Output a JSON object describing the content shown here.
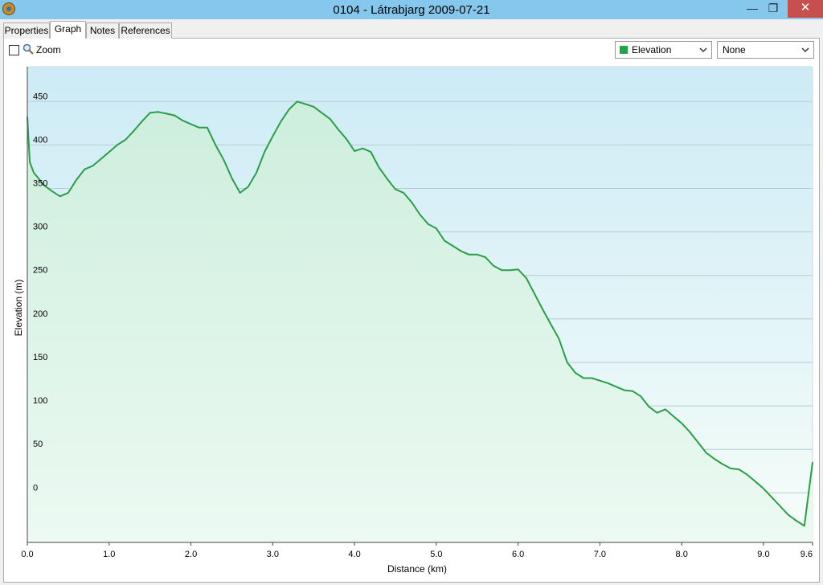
{
  "window": {
    "title": "0104 - Látrabjarg 2009-07-21",
    "controls": {
      "minimize": "—",
      "restore": "❐",
      "close": "✕"
    }
  },
  "tabs": [
    {
      "label": "Properties",
      "active": false
    },
    {
      "label": "Graph",
      "active": true
    },
    {
      "label": "Notes",
      "active": false
    },
    {
      "label": "References",
      "active": false
    }
  ],
  "toolbar": {
    "zoom_label": "Zoom",
    "zoom_checked": false,
    "primary_series_select": {
      "selected": "Elevation",
      "color": "#21a34a"
    },
    "secondary_series_select": {
      "selected": "None"
    }
  },
  "chart_data": {
    "type": "area",
    "xlabel": "Distance  (km)",
    "ylabel": "Elevation (m)",
    "xlim": [
      0,
      9.6
    ],
    "ylim": [
      -57,
      490
    ],
    "x_ticks": [
      "0.0",
      "1.0",
      "2.0",
      "3.0",
      "4.0",
      "5.0",
      "6.0",
      "7.0",
      "8.0",
      "9.0",
      "9.6"
    ],
    "y_ticks": [
      "0",
      "50",
      "100",
      "150",
      "200",
      "250",
      "300",
      "350",
      "400",
      "450"
    ],
    "grid": true,
    "series": [
      {
        "color": "#2a9e48",
        "x": [
          0.0,
          0.03,
          0.08,
          0.15,
          0.2,
          0.3,
          0.4,
          0.5,
          0.6,
          0.7,
          0.8,
          0.9,
          1.0,
          1.1,
          1.2,
          1.3,
          1.4,
          1.5,
          1.6,
          1.7,
          1.8,
          1.9,
          2.0,
          2.1,
          2.2,
          2.3,
          2.4,
          2.5,
          2.6,
          2.7,
          2.8,
          2.9,
          3.0,
          3.1,
          3.2,
          3.3,
          3.4,
          3.5,
          3.6,
          3.7,
          3.8,
          3.9,
          4.0,
          4.1,
          4.2,
          4.3,
          4.4,
          4.5,
          4.6,
          4.7,
          4.8,
          4.9,
          5.0,
          5.1,
          5.2,
          5.3,
          5.4,
          5.5,
          5.6,
          5.7,
          5.8,
          5.9,
          6.0,
          6.1,
          6.2,
          6.3,
          6.4,
          6.5,
          6.6,
          6.7,
          6.8,
          6.9,
          7.0,
          7.1,
          7.2,
          7.3,
          7.4,
          7.5,
          7.6,
          7.7,
          7.8,
          7.9,
          8.0,
          8.1,
          8.2,
          8.3,
          8.4,
          8.5,
          8.6,
          8.7,
          8.8,
          8.9,
          9.0,
          9.1,
          9.2,
          9.3,
          9.4,
          9.5,
          9.6
        ],
        "values": [
          432,
          380,
          368,
          360,
          354,
          347,
          341,
          345,
          360,
          372,
          376,
          384,
          392,
          400,
          406,
          416,
          427,
          437,
          438,
          436,
          434,
          428,
          424,
          420,
          420,
          400,
          383,
          362,
          345,
          352,
          368,
          392,
          410,
          427,
          441,
          450,
          447,
          444,
          437,
          430,
          418,
          407,
          393,
          396,
          392,
          374,
          361,
          349,
          345,
          334,
          320,
          309,
          304,
          290,
          284,
          278,
          274,
          274,
          271,
          261,
          256,
          256,
          257,
          247,
          229,
          211,
          194,
          177,
          150,
          138,
          132,
          132,
          129,
          126,
          122,
          118,
          117,
          111,
          99,
          92,
          96,
          88,
          80,
          70,
          58,
          46,
          39,
          33,
          28,
          27,
          21,
          13,
          5,
          -5,
          -15,
          -25,
          -32,
          -38,
          35
        ]
      }
    ]
  }
}
